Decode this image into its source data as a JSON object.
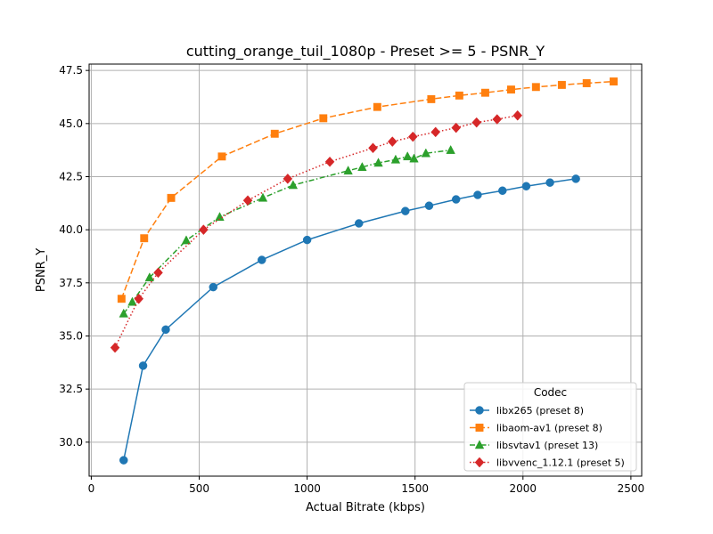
{
  "chart_data": {
    "type": "line",
    "title": "cutting_orange_tuil_1080p - Preset >= 5 - PSNR_Y",
    "xlabel": "Actual Bitrate (kbps)",
    "ylabel": "PSNR_Y",
    "xlim": [
      -10,
      2550
    ],
    "ylim": [
      28.4,
      47.8
    ],
    "xticks": [
      0,
      500,
      1000,
      1500,
      2000,
      2500
    ],
    "xtick_labels": [
      "0",
      "500",
      "1000",
      "1500",
      "2000",
      "2500"
    ],
    "yticks": [
      30.0,
      32.5,
      35.0,
      37.5,
      40.0,
      42.5,
      45.0,
      47.5
    ],
    "ytick_labels": [
      "30.0",
      "32.5",
      "35.0",
      "37.5",
      "40.0",
      "42.5",
      "45.0",
      "47.5"
    ],
    "grid": true,
    "legend": {
      "title": "Codec",
      "placement": "lower-right"
    },
    "series": [
      {
        "name": "libx265 (preset 8)",
        "color": "#1f77b4",
        "marker": "circle",
        "linestyle": "solid",
        "x": [
          150,
          240,
          345,
          565,
          790,
          1000,
          1240,
          1455,
          1565,
          1690,
          1790,
          1905,
          2015,
          2125,
          2245
        ],
        "y": [
          29.15,
          33.6,
          35.3,
          37.3,
          38.58,
          39.52,
          40.3,
          40.88,
          41.13,
          41.43,
          41.64,
          41.84,
          42.05,
          42.22,
          42.4
        ]
      },
      {
        "name": "libaom-av1 (preset 8)",
        "color": "#ff7f0e",
        "marker": "square",
        "linestyle": "dashed",
        "x": [
          140,
          245,
          370,
          605,
          850,
          1075,
          1325,
          1575,
          1705,
          1825,
          1945,
          2060,
          2180,
          2295,
          2420
        ],
        "y": [
          36.75,
          39.6,
          41.5,
          43.45,
          44.52,
          45.25,
          45.78,
          46.15,
          46.32,
          46.45,
          46.6,
          46.72,
          46.82,
          46.9,
          46.98
        ]
      },
      {
        "name": "libsvtav1 (preset 13)",
        "color": "#2ca02c",
        "marker": "triangle",
        "linestyle": "dashdot",
        "x": [
          150,
          190,
          270,
          440,
          595,
          795,
          935,
          1190,
          1255,
          1330,
          1410,
          1465,
          1495,
          1550,
          1665
        ],
        "y": [
          36.05,
          36.6,
          37.75,
          39.5,
          40.6,
          41.5,
          42.1,
          42.78,
          42.95,
          43.15,
          43.3,
          43.45,
          43.35,
          43.6,
          43.75
        ]
      },
      {
        "name": "libvvenc_1.12.1 (preset 5)",
        "color": "#d62728",
        "marker": "diamond",
        "linestyle": "dotted",
        "x": [
          110,
          220,
          310,
          520,
          725,
          910,
          1105,
          1305,
          1395,
          1490,
          1595,
          1690,
          1785,
          1880,
          1975
        ],
        "y": [
          34.45,
          36.75,
          37.98,
          40.0,
          41.38,
          42.4,
          43.2,
          43.85,
          44.15,
          44.38,
          44.6,
          44.8,
          45.05,
          45.2,
          45.38
        ]
      }
    ]
  }
}
